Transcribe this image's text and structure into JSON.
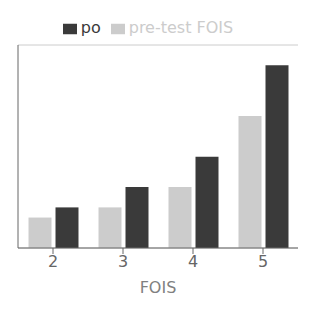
{
  "chart_data": {
    "type": "bar",
    "categories": [
      "2",
      "3",
      "4",
      "5"
    ],
    "series": [
      {
        "name": "pre-test FOIS",
        "color": "#cccccc",
        "values": [
          3,
          4,
          6,
          13
        ]
      },
      {
        "name": "po",
        "color": "#3a3a3a",
        "values": [
          4,
          6,
          9,
          18
        ]
      }
    ],
    "xlabel": "FOIS",
    "ylim": [
      0,
      20
    ],
    "yticks": [
      0,
      4,
      8,
      12,
      16,
      20
    ],
    "grid": true,
    "legend": "top",
    "tick_labels": "x"
  }
}
